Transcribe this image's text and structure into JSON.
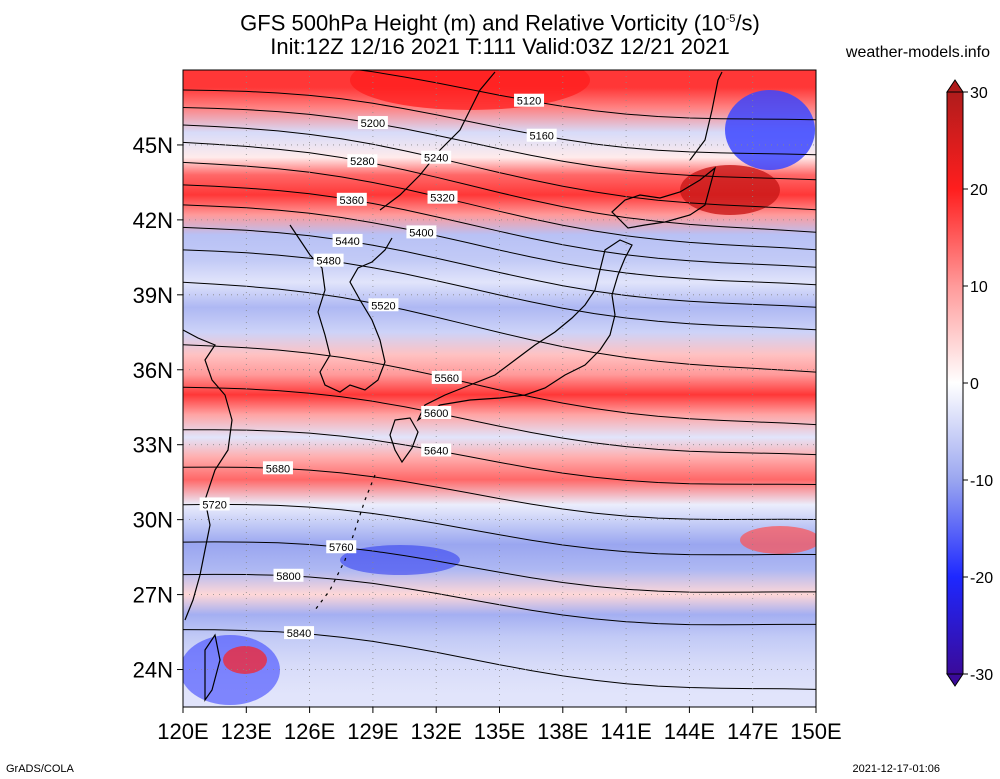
{
  "header": {
    "title_line1": "GFS 500hPa Height (m) and Relative Vorticity (10",
    "title_sup": "-5",
    "title_line1_end": "/s)",
    "title_line2": "Init:12Z 12/16 2021 T:111 Valid:03Z 12/21 2021",
    "site": "weather-models.info"
  },
  "footer": {
    "left": "GrADS/COLA",
    "right": "2021-12-17-01:06"
  },
  "map": {
    "lon_ticks": [
      "120E",
      "123E",
      "126E",
      "129E",
      "132E",
      "135E",
      "138E",
      "141E",
      "144E",
      "147E",
      "150E"
    ],
    "lat_ticks": [
      "45N",
      "42N",
      "39N",
      "36N",
      "33N",
      "30N",
      "27N",
      "24N"
    ],
    "lon_range": [
      120,
      150
    ],
    "lat_range": [
      22.5,
      48
    ]
  },
  "colorbar": {
    "labels": [
      "30",
      "20",
      "10",
      "0",
      "-10",
      "-20",
      "-30"
    ],
    "colors": {
      "max": "#b01c1c",
      "high": "#ff1e1e",
      "mid_high": "#ff9a9a",
      "zero": "#ffffff",
      "mid_low": "#9aa6f0",
      "low": "#1e28ff",
      "min": "#3a0a9a"
    }
  },
  "bands": [
    {
      "lat": 47.3,
      "v": 18
    },
    {
      "lat": 46.5,
      "v": 12
    },
    {
      "lat": 45.5,
      "v": -4
    },
    {
      "lat": 44.5,
      "v": 2
    },
    {
      "lat": 43.8,
      "v": 14
    },
    {
      "lat": 43.0,
      "v": 18
    },
    {
      "lat": 42.2,
      "v": 10
    },
    {
      "lat": 41.4,
      "v": -7
    },
    {
      "lat": 40.4,
      "v": -6
    },
    {
      "lat": 39.5,
      "v": -3
    },
    {
      "lat": 38.5,
      "v": -8
    },
    {
      "lat": 37.5,
      "v": -5
    },
    {
      "lat": 36.6,
      "v": 6
    },
    {
      "lat": 35.8,
      "v": 10
    },
    {
      "lat": 35.0,
      "v": 18
    },
    {
      "lat": 34.2,
      "v": 9
    },
    {
      "lat": 33.3,
      "v": -3
    },
    {
      "lat": 32.5,
      "v": 8
    },
    {
      "lat": 31.6,
      "v": 14
    },
    {
      "lat": 30.6,
      "v": -2
    },
    {
      "lat": 29.8,
      "v": -6
    },
    {
      "lat": 29.0,
      "v": -10
    },
    {
      "lat": 28.0,
      "v": -8
    },
    {
      "lat": 27.0,
      "v": 4
    },
    {
      "lat": 26.2,
      "v": -9
    },
    {
      "lat": 25.3,
      "v": -6
    },
    {
      "lat": 24.2,
      "v": -4
    },
    {
      "lat": 23.0,
      "v": -3
    }
  ],
  "contours": [
    {
      "value": "5120",
      "lat_w": 48.4,
      "lat_e": 45.8,
      "label_lon": 136.4
    },
    {
      "value": "5160",
      "lat_w": 47.2,
      "lat_e": 44.4,
      "label_lon": 137.0
    },
    {
      "value": "5200",
      "lat_w": 46.5,
      "lat_e": 43.4,
      "label_lon": 129.0
    },
    {
      "value": "5240",
      "lat_w": 45.8,
      "lat_e": 42.2,
      "label_lon": 132.0
    },
    {
      "value": "5280",
      "lat_w": 45.1,
      "lat_e": 41.3,
      "label_lon": 128.5
    },
    {
      "value": "5320",
      "lat_w": 44.3,
      "lat_e": 40.6,
      "label_lon": 132.3
    },
    {
      "value": "5360",
      "lat_w": 43.4,
      "lat_e": 39.9,
      "label_lon": 128.0
    },
    {
      "value": "5400",
      "lat_w": 42.6,
      "lat_e": 39.2,
      "label_lon": 131.3
    },
    {
      "value": "5440",
      "lat_w": 41.7,
      "lat_e": 38.3,
      "label_lon": 127.8
    },
    {
      "value": "5480",
      "lat_w": 40.8,
      "lat_e": 37.4,
      "label_lon": 126.9
    },
    {
      "value": "5520",
      "lat_w": 39.5,
      "lat_e": 35.7,
      "label_lon": 129.5
    },
    {
      "value": "5560",
      "lat_w": 37.0,
      "lat_e": 33.6,
      "label_lon": 132.5
    },
    {
      "value": "5600",
      "lat_w": 35.3,
      "lat_e": 32.4,
      "label_lon": 132.0
    },
    {
      "value": "5640",
      "lat_w": 33.6,
      "lat_e": 31.2,
      "label_lon": 132.0
    },
    {
      "value": "5680",
      "lat_w": 32.1,
      "lat_e": 29.8,
      "label_lon": 124.5
    },
    {
      "value": "5720",
      "lat_w": 30.6,
      "lat_e": 28.4,
      "label_lon": 121.5
    },
    {
      "value": "5760",
      "lat_w": 29.1,
      "lat_e": 26.9,
      "label_lon": 127.5
    },
    {
      "value": "5800",
      "lat_w": 27.8,
      "lat_e": 25.6,
      "label_lon": 125.0
    },
    {
      "value": "5840",
      "lat_w": 25.6,
      "lat_e": 23.0,
      "label_lon": 125.5
    }
  ]
}
